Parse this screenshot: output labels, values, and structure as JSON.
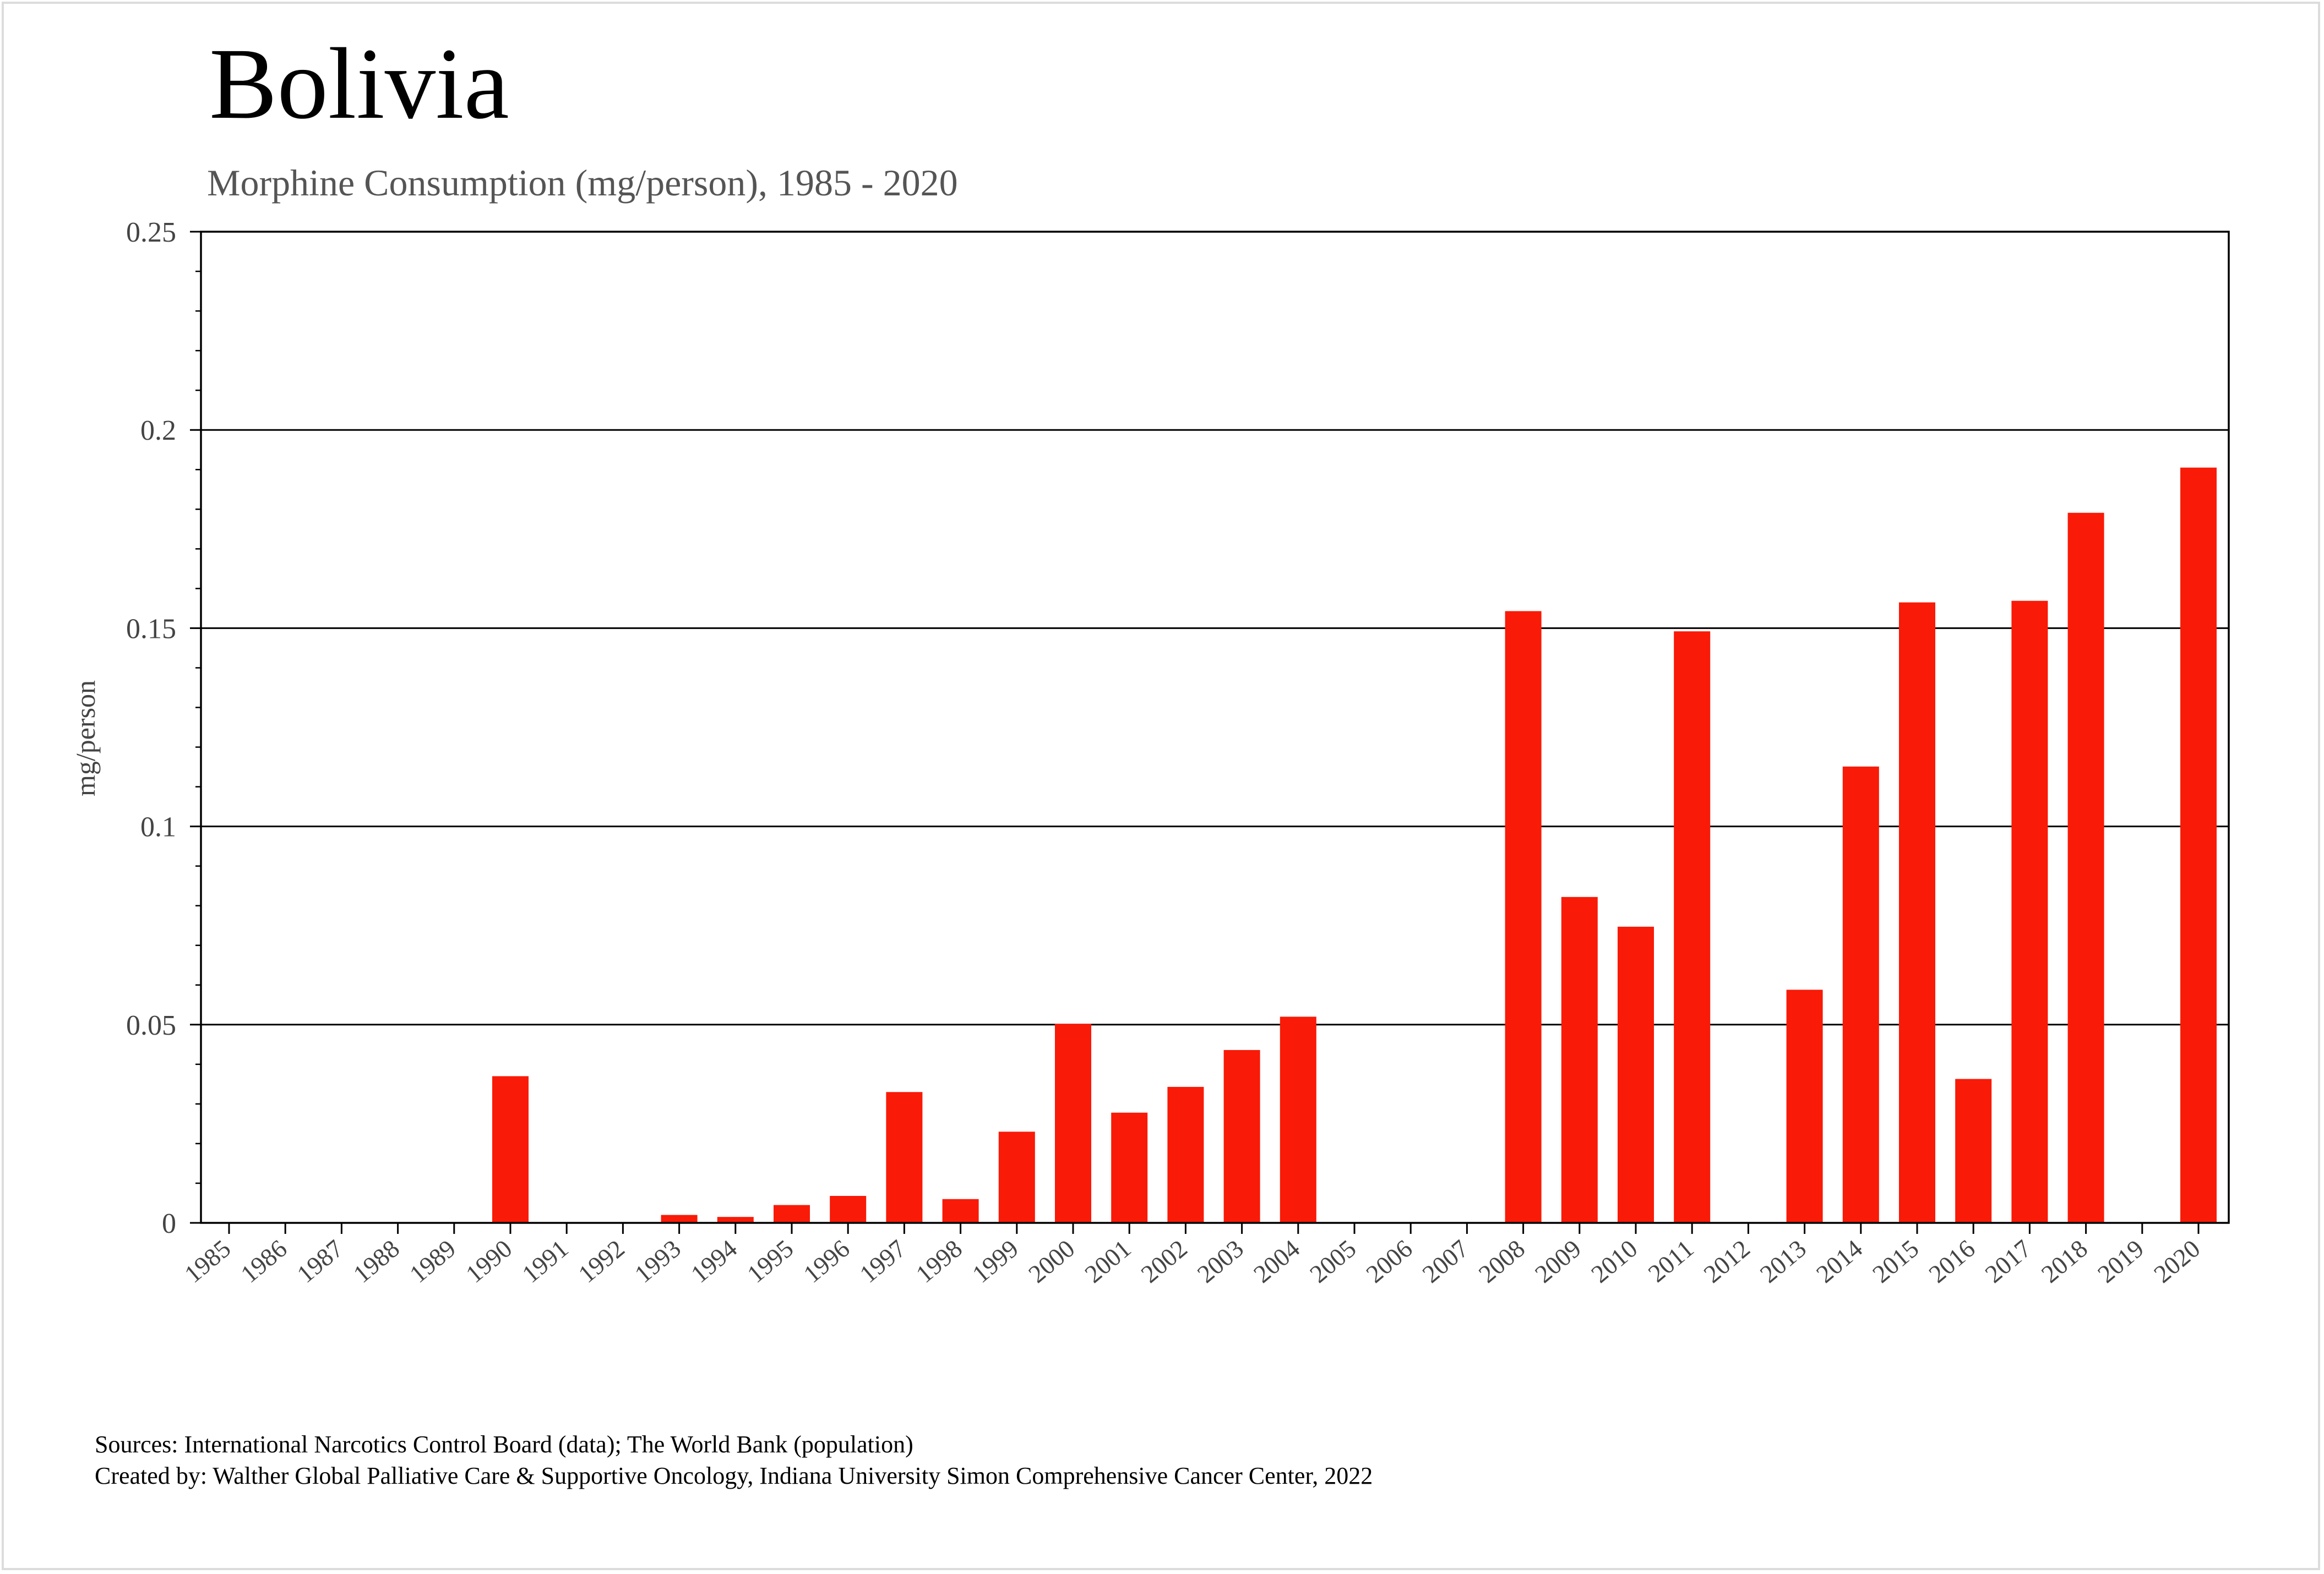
{
  "title": "Bolivia",
  "subtitle": "Morphine Consumption (mg/person), 1985 - 2020",
  "footer": {
    "sources": "Sources: International Narcotics Control Board (data); The World Bank (population)",
    "created_by": "Created by: Walther  Global Palliative Care & Supportive Oncology, Indiana University Simon Comprehensive Cancer Center, 2022"
  },
  "chart_data": {
    "type": "bar",
    "ylabel": "mg/person",
    "xlabel": "",
    "ylim": [
      0,
      0.25
    ],
    "yticks": [
      0,
      0.05,
      0.1,
      0.15,
      0.2,
      0.25
    ],
    "ytick_labels": [
      "0",
      "0.05",
      "0.1",
      "0.15",
      "0.2",
      "0.25"
    ],
    "grid": true,
    "bar_color": "#f91a07",
    "categories": [
      "1985",
      "1986",
      "1987",
      "1988",
      "1989",
      "1990",
      "1991",
      "1992",
      "1993",
      "1994",
      "1995",
      "1996",
      "1997",
      "1998",
      "1999",
      "2000",
      "2001",
      "2002",
      "2003",
      "2004",
      "2005",
      "2006",
      "2007",
      "2008",
      "2009",
      "2010",
      "2011",
      "2012",
      "2013",
      "2014",
      "2015",
      "2016",
      "2017",
      "2018",
      "2019",
      "2020"
    ],
    "values": [
      0,
      0,
      0,
      0,
      0,
      0.037,
      0,
      0,
      0.002,
      0.0015,
      0.0045,
      0.0068,
      0.033,
      0.006,
      0.023,
      0.0502,
      0.0278,
      0.0343,
      0.0436,
      0.052,
      0,
      0,
      0,
      0.1543,
      0.0822,
      0.0747,
      0.1492,
      0,
      0.0588,
      0.1151,
      0.1565,
      0.0363,
      0.1569,
      0.1791,
      0,
      0.1905
    ]
  }
}
